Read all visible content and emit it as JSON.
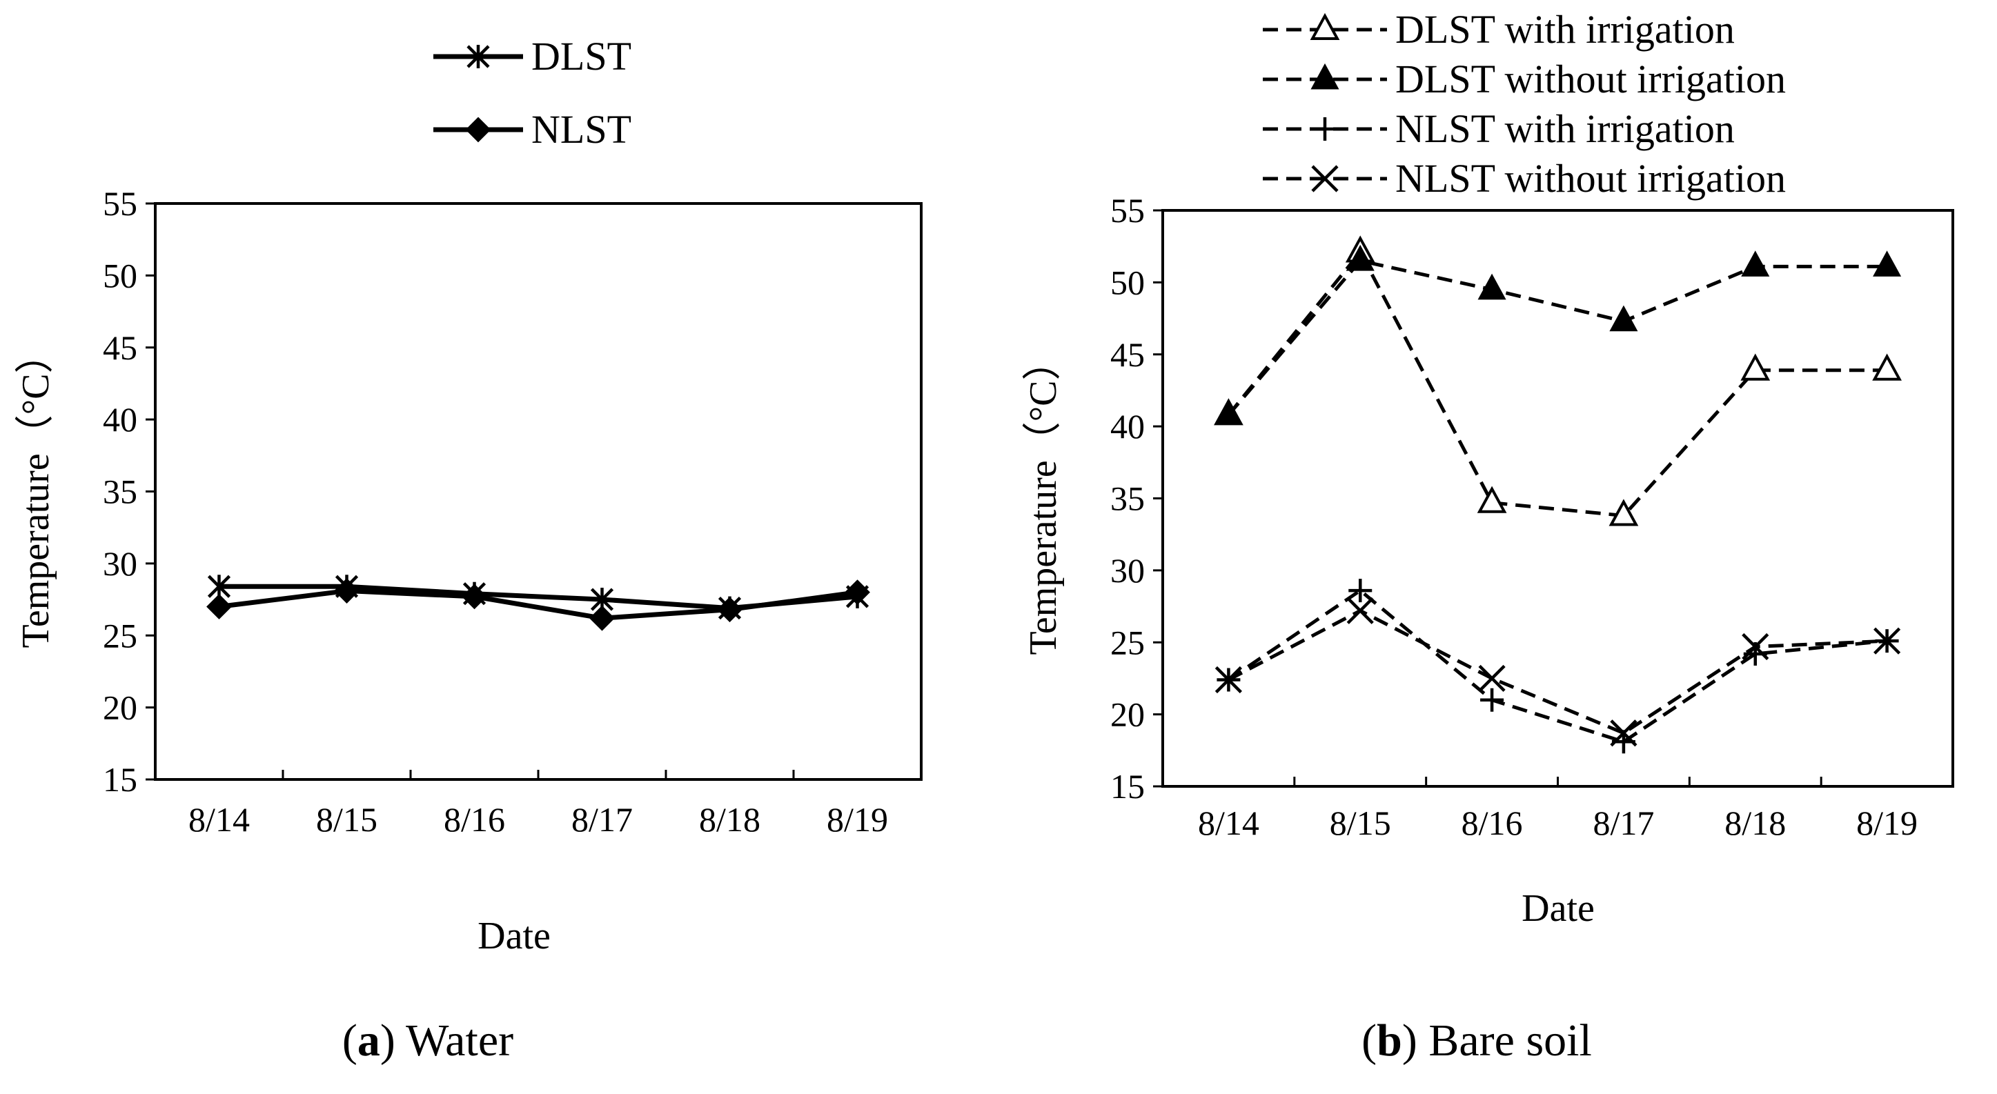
{
  "chart_data": [
    {
      "type": "line",
      "panel_letter": "a",
      "caption": "Water",
      "title": "",
      "xlabel": "Date",
      "ylabel": "Temperature（°C）",
      "ylim": [
        15,
        55
      ],
      "yticks": [
        15,
        20,
        25,
        30,
        35,
        40,
        45,
        50,
        55
      ],
      "grid": false,
      "legend_position": "top-center",
      "categories": [
        "8/14",
        "8/15",
        "8/16",
        "8/17",
        "8/18",
        "8/19"
      ],
      "series": [
        {
          "name": "DLST",
          "marker": "asterisk",
          "line": "solid",
          "values": [
            28.4,
            28.4,
            27.9,
            27.5,
            26.9,
            27.7
          ]
        },
        {
          "name": "NLST",
          "marker": "filled-diamond",
          "line": "solid",
          "values": [
            27.0,
            28.1,
            27.7,
            26.2,
            26.8,
            28.0
          ]
        }
      ]
    },
    {
      "type": "line",
      "panel_letter": "b",
      "caption": "Bare soil",
      "title": "",
      "xlabel": "Date",
      "ylabel": "Temperature（°C）",
      "ylim": [
        15,
        55
      ],
      "yticks": [
        15,
        20,
        25,
        30,
        35,
        40,
        45,
        50,
        55
      ],
      "grid": false,
      "legend_position": "top",
      "categories": [
        "8/14",
        "8/15",
        "8/16",
        "8/17",
        "8/18",
        "8/19"
      ],
      "series": [
        {
          "name": "DLST with irrigation",
          "marker": "open-triangle",
          "line": "dashed",
          "values": [
            40.8,
            52.1,
            34.7,
            33.8,
            43.9,
            43.9
          ]
        },
        {
          "name": "DLST without irrigation",
          "marker": "filled-triangle",
          "line": "dashed",
          "values": [
            40.8,
            51.5,
            49.5,
            47.3,
            51.1,
            51.1
          ]
        },
        {
          "name": "NLST with irrigation",
          "marker": "plus",
          "line": "dashed",
          "values": [
            22.4,
            28.6,
            21.0,
            18.1,
            24.2,
            25.1
          ]
        },
        {
          "name": "NLST without irrigation",
          "marker": "x",
          "line": "dashed",
          "values": [
            22.4,
            27.2,
            22.5,
            18.7,
            24.7,
            25.1
          ]
        }
      ]
    }
  ]
}
